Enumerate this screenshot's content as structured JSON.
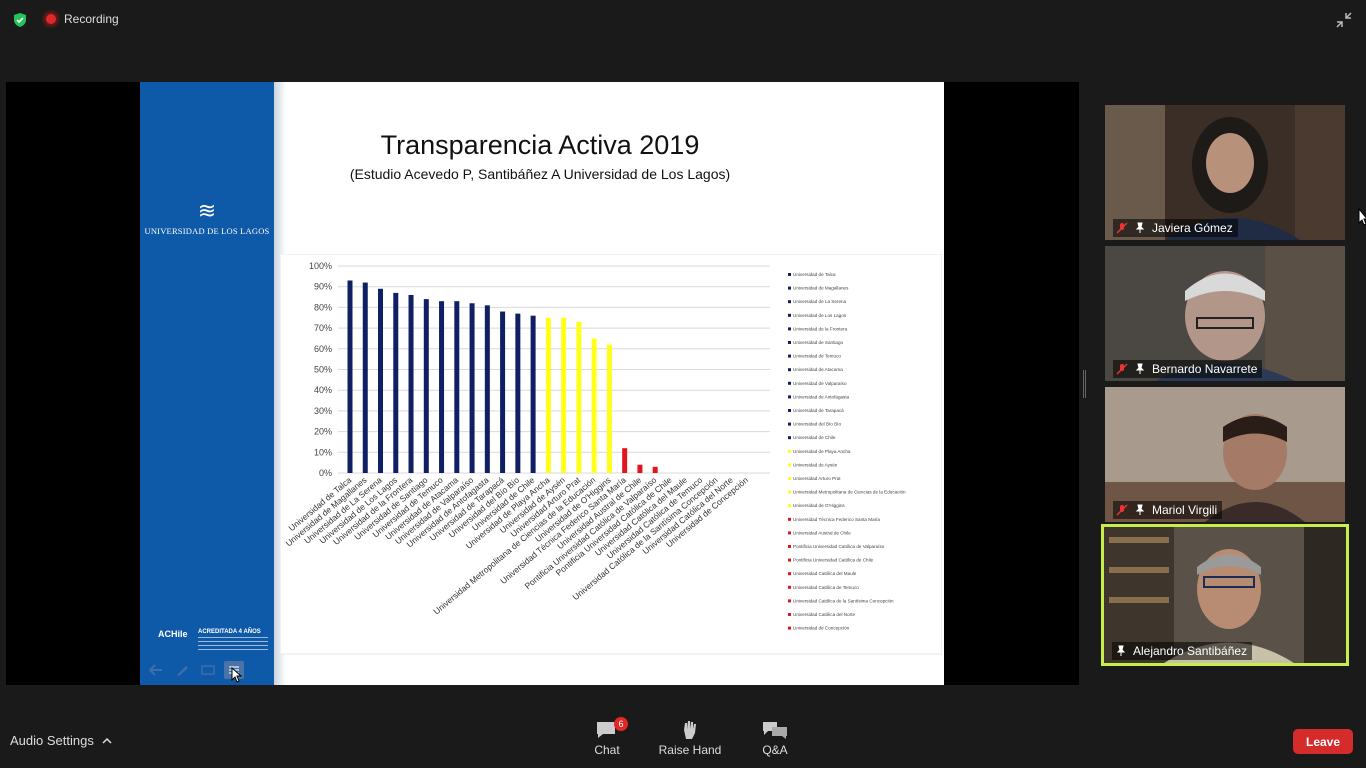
{
  "recording": {
    "label": "Recording"
  },
  "slide": {
    "title": "Transparencia Activa 2019",
    "subtitle": "(Estudio Acevedo P, Santibáñez A Universidad de Los Lagos)",
    "logo_mark": "≋",
    "university_name": "UNIVERSIDAD DE LOS LAGOS",
    "accreditation": {
      "logo_text": "ACHile",
      "title": "ACREDITADA 4 AÑOS"
    }
  },
  "chart_data": {
    "type": "bar",
    "title": "",
    "ylabel": "",
    "xlabel": "",
    "ylim": [
      0,
      1
    ],
    "y_ticks": [
      "0%",
      "10%",
      "20%",
      "30%",
      "40%",
      "50%",
      "60%",
      "70%",
      "80%",
      "90%",
      "100%"
    ],
    "categories": [
      "Universidad de Talca",
      "Universidad de Magallanes",
      "Universidad de La Serena",
      "Universidad de Los Lagos",
      "Universidad de la Frontera",
      "Universidad de Santiago",
      "Universidad de Temuco",
      "Universidad de Atacama",
      "Universidad de Valparaíso",
      "Universidad de Antofagasta",
      "Universidad de Tarapacá",
      "Universidad del Bío Bío",
      "Universidad de Chile",
      "Universidad de Playa Ancha",
      "Universidad de Aysén",
      "Universidad Arturo Prat",
      "Universidad Metropolitana de Ciencias de la Educación",
      "Universidad de O'Higgins",
      "Universidad Técnica Federico Santa María",
      "Universidad Austral de Chile",
      "Pontificia Universidad Católica de Valparaíso",
      "Pontificia Universidad Católica de Chile",
      "Universidad Católica del Maule",
      "Universidad Católica de Temuco",
      "Universidad Católica de la Santísima Concepción",
      "Universidad Católica del Norte",
      "Universidad de Concepción"
    ],
    "values": [
      0.93,
      0.92,
      0.89,
      0.87,
      0.86,
      0.84,
      0.83,
      0.83,
      0.82,
      0.81,
      0.78,
      0.77,
      0.76,
      0.75,
      0.75,
      0.73,
      0.65,
      0.62,
      0.12,
      0.04,
      0.03,
      0,
      0,
      0,
      0,
      0,
      0
    ],
    "bar_colors": [
      "#0f1f63",
      "#0f1f63",
      "#0f1f63",
      "#0f1f63",
      "#0f1f63",
      "#0f1f63",
      "#0f1f63",
      "#0f1f63",
      "#0f1f63",
      "#0f1f63",
      "#0f1f63",
      "#0f1f63",
      "#0f1f63",
      "#ffff1a",
      "#ffff1a",
      "#ffff1a",
      "#ffff1a",
      "#ffff1a",
      "#e0161e",
      "#e0161e",
      "#e0161e",
      "#e0161e",
      "#e0161e",
      "#e0161e",
      "#e0161e",
      "#e0161e",
      "#e0161e"
    ],
    "legend_position": "right",
    "grid": true
  },
  "participants": [
    {
      "name": "Javiera Gómez",
      "muted": true
    },
    {
      "name": "Bernardo Navarrete",
      "muted": true
    },
    {
      "name": "Mariol Virgili",
      "muted": true
    },
    {
      "name": "Alejandro Santibáñez",
      "muted": false,
      "speaking": true
    }
  ],
  "toolbar": {
    "audio_settings_label": "Audio Settings",
    "chat_label": "Chat",
    "chat_badge": "6",
    "raise_hand_label": "Raise Hand",
    "qa_label": "Q&A",
    "leave_label": "Leave"
  },
  "colors": {
    "accent_speaking": "#c8ee4a",
    "leave": "#d62b2b",
    "slide_sidebar": "#0e5aa8"
  }
}
